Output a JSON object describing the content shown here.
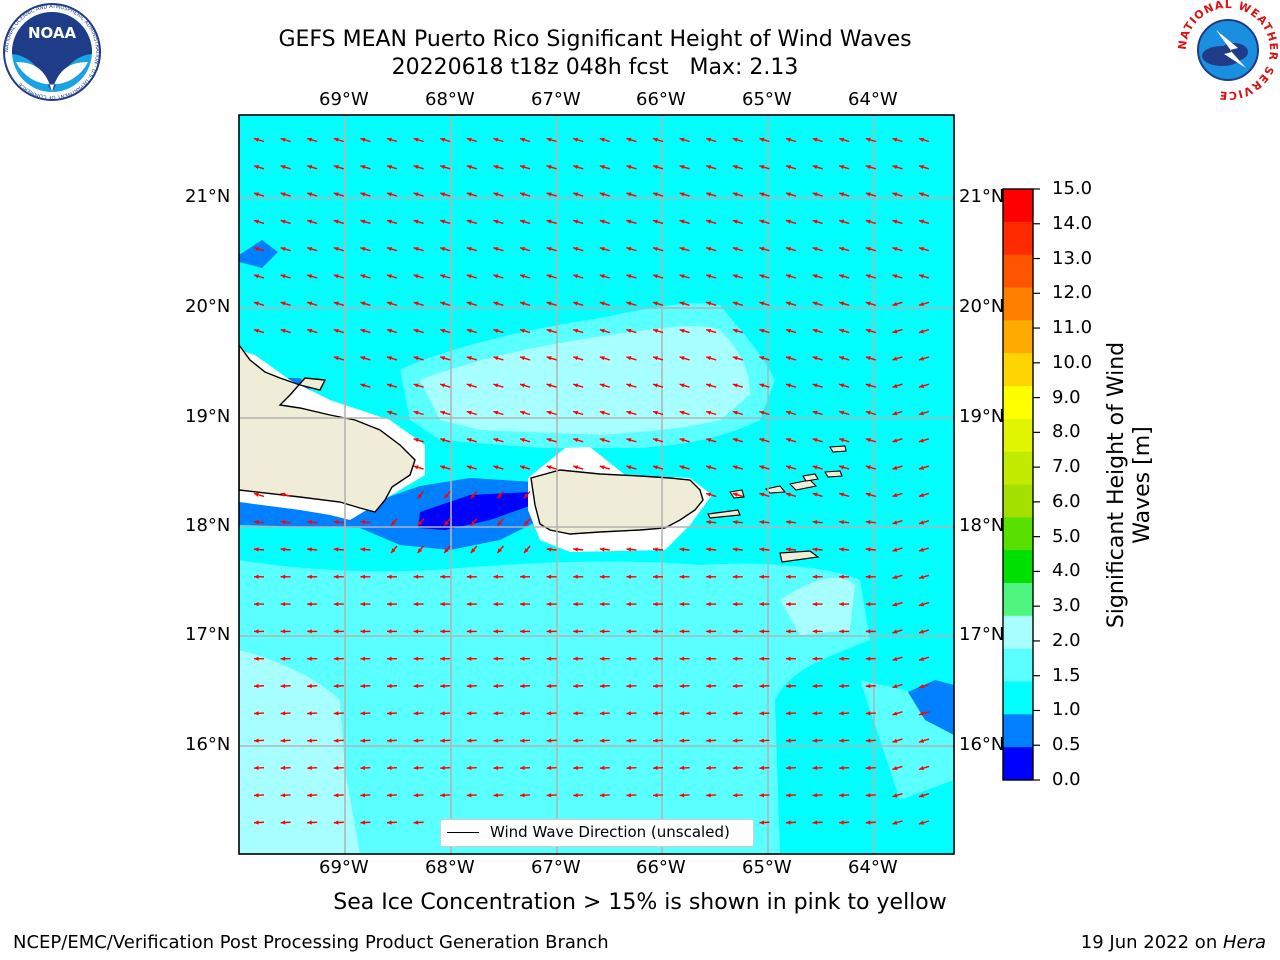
{
  "header": {
    "title_line1": "GEFS MEAN Puerto Rico Significant Height of Wind Waves",
    "title_line2": "20220618 t18z 048h fcst   Max: 2.13"
  },
  "logos": {
    "left": {
      "text": "NOAA",
      "ring_text": "NATIONAL OCEANIC AND ATMOSPHERIC ADMINISTRATION · U.S. DEPARTMENT OF COMMERCE",
      "icon": "noaa-logo"
    },
    "right": {
      "ring_text": "NATIONAL WEATHER SERVICE",
      "icon": "nws-logo"
    }
  },
  "map": {
    "lon_ticks": [
      "69°W",
      "68°W",
      "67°W",
      "66°W",
      "65°W",
      "64°W"
    ],
    "lat_ticks": [
      "21°N",
      "20°N",
      "19°N",
      "18°N",
      "17°N",
      "16°N"
    ],
    "legend_label": "Wind Wave Direction (unscaled)",
    "vector_color": "#ff0000",
    "land_color": "#efedd8"
  },
  "colorbar": {
    "label": "Significant Height of Wind Waves [m]",
    "ticks": [
      "15.0",
      "14.0",
      "13.0",
      "12.0",
      "11.0",
      "10.0",
      "9.0",
      "8.0",
      "7.0",
      "6.0",
      "5.0",
      "4.0",
      "3.0",
      "2.0",
      "1.5",
      "1.0",
      "0.5",
      "0.0"
    ],
    "colors": [
      "#ff0000",
      "#ff2a00",
      "#ff5500",
      "#ff8000",
      "#ffaa00",
      "#ffd400",
      "#ffff00",
      "#e0f500",
      "#c2eb00",
      "#a3e000",
      "#58e000",
      "#00e000",
      "#4ff57f",
      "#a8ffff",
      "#5affff",
      "#00ffff",
      "#0080ff",
      "#0000ff"
    ]
  },
  "notes": {
    "sea_ice": "Sea Ice Concentration > 15% is shown in pink to yellow",
    "credit": "NCEP/EMC/Verification Post Processing Product Generation Branch",
    "date": "19 Jun 2022 on ",
    "system": "Hera"
  }
}
